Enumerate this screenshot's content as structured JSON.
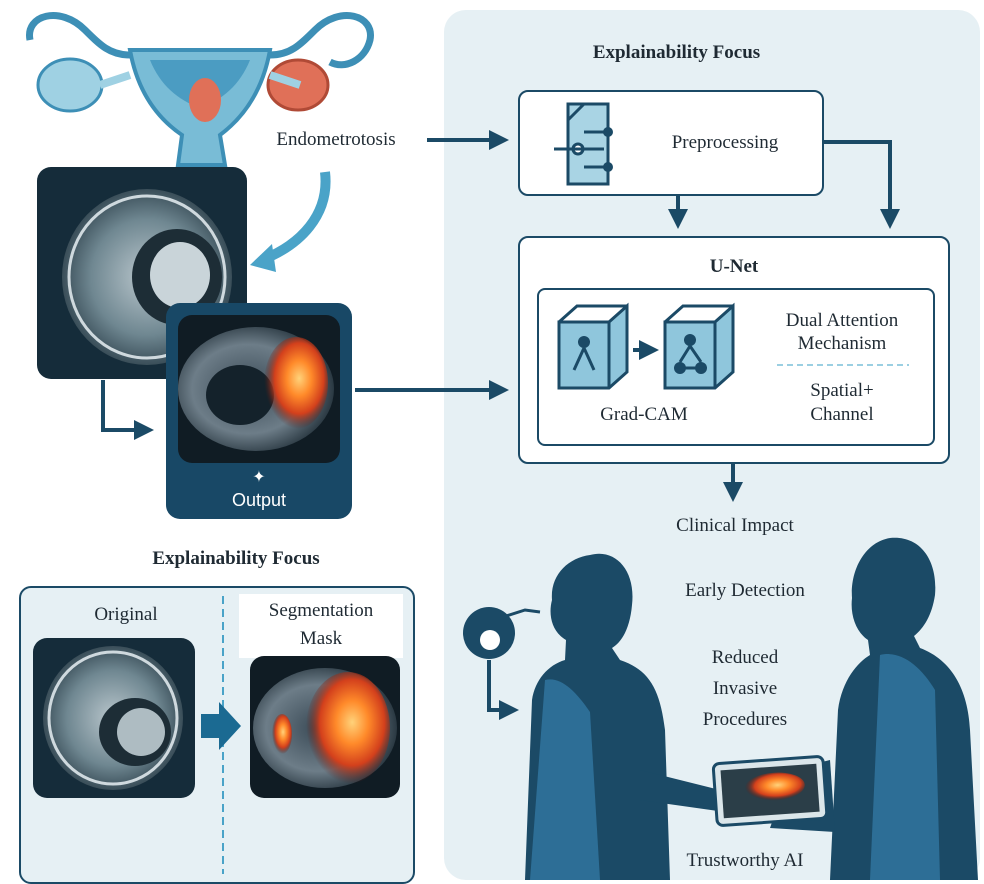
{
  "top_title": "Explainability Focus",
  "input_label": "Endometrotosis",
  "output_label": "Output",
  "output_star": "✦",
  "preprocessing_label": "Preprocessing",
  "unet_title": "U-Net",
  "gradcam_label": "Grad-CAM",
  "attention_line1": "Dual Attention",
  "attention_line2": "Mechanism",
  "spatial_line1": "Spatial+",
  "spatial_line2": "Channel",
  "clinical_impact": "Clinical Impact",
  "early_detection": "Early Detection",
  "reduced_line1": "Reduced",
  "reduced_line2": "Invasive",
  "reduced_line3": "Procedures",
  "trustworthy_ai": "Trustworthy AI",
  "bottom_title": "Explainability Focus",
  "original_label": "Original",
  "seg_line1": "Segmentation",
  "seg_line2": "Mask",
  "colors": {
    "navy": "#1b4a66",
    "panel": "#e6f0f4",
    "heat": "#e8552a",
    "accent": "#4aa3c8"
  }
}
